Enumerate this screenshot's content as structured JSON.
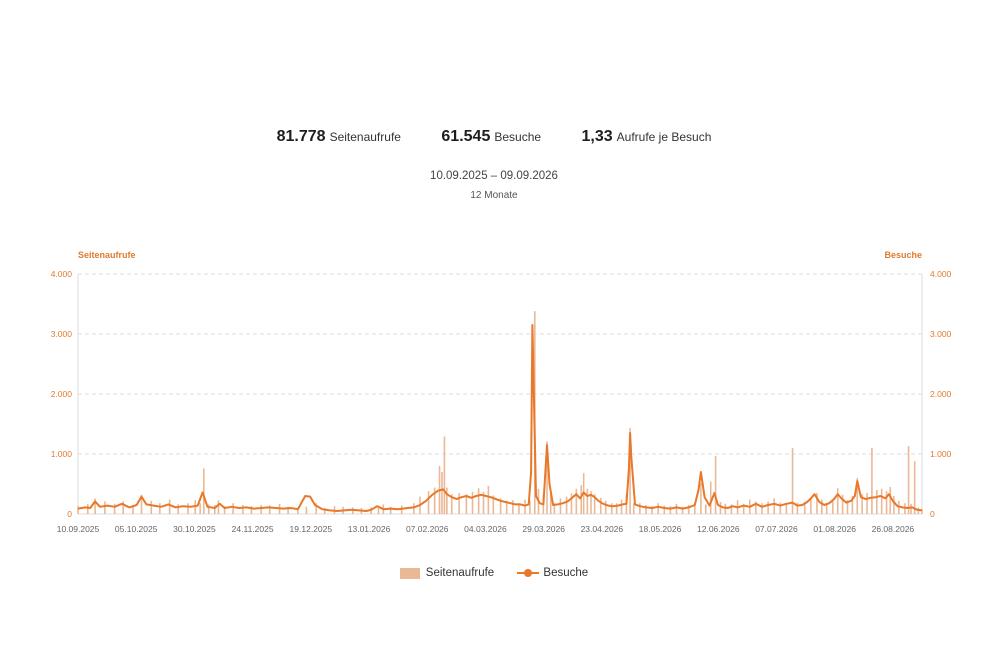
{
  "summary": {
    "pageviews_value": "81.778",
    "pageviews_label": "Seitenaufrufe",
    "visits_value": "61.545",
    "visits_label": "Besuche",
    "ratio_value": "1,33",
    "ratio_label": "Aufrufe je Besuch",
    "date_range": "10.09.2025 – 09.09.2026",
    "period_label": "12 Monate"
  },
  "colors": {
    "line": "#e8782a",
    "bars": "#ebb895",
    "axis_text": "#e07a2e",
    "grid": "#dcdcdc",
    "tick_text": "#666666"
  },
  "chart_data": {
    "type": "bar+line",
    "y_left_label": "Seitenaufrufe",
    "y_right_label": "Besuche",
    "ylim": [
      0,
      4000
    ],
    "y_ticks": [
      "0",
      "1.000",
      "2.000",
      "3.000",
      "4.000"
    ],
    "x_tick_labels": [
      "10.09.2025",
      "05.10.2025",
      "30.10.2025",
      "24.11.2025",
      "19.12.2025",
      "13.01.2026",
      "07.02.2026",
      "04.03.2026",
      "29.03.2026",
      "23.04.2026",
      "18.05.2026",
      "12.06.2026",
      "07.07.2026",
      "01.08.2026",
      "26.08.2026"
    ],
    "grid": true,
    "legend_position": "bottom-center",
    "series": [
      {
        "name": "Seitenaufrufe",
        "type": "bar",
        "points": [
          [
            0,
            130
          ],
          [
            8,
            170
          ],
          [
            14,
            260
          ],
          [
            22,
            210
          ],
          [
            30,
            170
          ],
          [
            37,
            210
          ],
          [
            45,
            150
          ],
          [
            52,
            320
          ],
          [
            60,
            220
          ],
          [
            67,
            180
          ],
          [
            75,
            240
          ],
          [
            82,
            160
          ],
          [
            90,
            180
          ],
          [
            96,
            230
          ],
          [
            100,
            180
          ],
          [
            103,
            760
          ],
          [
            107,
            160
          ],
          [
            112,
            150
          ],
          [
            115,
            230
          ],
          [
            120,
            130
          ],
          [
            127,
            180
          ],
          [
            135,
            150
          ],
          [
            142,
            130
          ],
          [
            150,
            150
          ],
          [
            157,
            140
          ],
          [
            165,
            170
          ],
          [
            172,
            120
          ],
          [
            180,
            110
          ],
          [
            187,
            120
          ],
          [
            195,
            180
          ],
          [
            202,
            100
          ],
          [
            210,
            130
          ],
          [
            217,
            120
          ],
          [
            225,
            110
          ],
          [
            232,
            100
          ],
          [
            240,
            110
          ],
          [
            246,
            100
          ],
          [
            250,
            160
          ],
          [
            256,
            120
          ],
          [
            265,
            140
          ],
          [
            275,
            180
          ],
          [
            280,
            290
          ],
          [
            287,
            380
          ],
          [
            292,
            440
          ],
          [
            296,
            800
          ],
          [
            298,
            700
          ],
          [
            300,
            1290
          ],
          [
            302,
            440
          ],
          [
            306,
            330
          ],
          [
            312,
            350
          ],
          [
            318,
            330
          ],
          [
            323,
            370
          ],
          [
            328,
            430
          ],
          [
            332,
            370
          ],
          [
            336,
            470
          ],
          [
            340,
            310
          ],
          [
            346,
            260
          ],
          [
            351,
            220
          ],
          [
            356,
            230
          ],
          [
            361,
            180
          ],
          [
            366,
            240
          ],
          [
            370,
            220
          ],
          [
            374,
            3380
          ],
          [
            377,
            420
          ],
          [
            381,
            320
          ],
          [
            384,
            1210
          ],
          [
            387,
            350
          ],
          [
            390,
            180
          ],
          [
            395,
            260
          ],
          [
            400,
            290
          ],
          [
            404,
            340
          ],
          [
            408,
            420
          ],
          [
            412,
            480
          ],
          [
            414,
            680
          ],
          [
            417,
            420
          ],
          [
            420,
            380
          ],
          [
            423,
            330
          ],
          [
            428,
            270
          ],
          [
            432,
            220
          ],
          [
            437,
            180
          ],
          [
            441,
            180
          ],
          [
            445,
            240
          ],
          [
            449,
            320
          ],
          [
            452,
            1430
          ],
          [
            455,
            180
          ],
          [
            460,
            180
          ],
          [
            465,
            150
          ],
          [
            470,
            130
          ],
          [
            475,
            180
          ],
          [
            480,
            140
          ],
          [
            485,
            130
          ],
          [
            490,
            170
          ],
          [
            495,
            120
          ],
          [
            500,
            150
          ],
          [
            505,
            180
          ],
          [
            510,
            520
          ],
          [
            514,
            160
          ],
          [
            518,
            540
          ],
          [
            522,
            970
          ],
          [
            526,
            200
          ],
          [
            530,
            170
          ],
          [
            535,
            160
          ],
          [
            540,
            230
          ],
          [
            545,
            170
          ],
          [
            550,
            240
          ],
          [
            555,
            210
          ],
          [
            560,
            180
          ],
          [
            565,
            210
          ],
          [
            570,
            260
          ],
          [
            575,
            190
          ],
          [
            580,
            160
          ],
          [
            585,
            1100
          ],
          [
            589,
            190
          ],
          [
            595,
            200
          ],
          [
            600,
            280
          ],
          [
            605,
            350
          ],
          [
            609,
            240
          ],
          [
            613,
            180
          ],
          [
            618,
            230
          ],
          [
            622,
            430
          ],
          [
            626,
            320
          ],
          [
            630,
            230
          ],
          [
            634,
            300
          ],
          [
            638,
            600
          ],
          [
            642,
            330
          ],
          [
            646,
            350
          ],
          [
            650,
            1100
          ],
          [
            654,
            400
          ],
          [
            658,
            420
          ],
          [
            662,
            380
          ],
          [
            665,
            450
          ],
          [
            668,
            300
          ],
          [
            672,
            220
          ],
          [
            677,
            180
          ],
          [
            680,
            1130
          ],
          [
            682,
            170
          ],
          [
            685,
            880
          ],
          [
            688,
            110
          ],
          [
            691,
            80
          ]
        ]
      },
      {
        "name": "Besuche",
        "type": "line",
        "points": [
          [
            0,
            90
          ],
          [
            6,
            110
          ],
          [
            10,
            100
          ],
          [
            14,
            210
          ],
          [
            18,
            120
          ],
          [
            24,
            140
          ],
          [
            30,
            120
          ],
          [
            36,
            170
          ],
          [
            42,
            110
          ],
          [
            48,
            150
          ],
          [
            52,
            290
          ],
          [
            56,
            160
          ],
          [
            62,
            140
          ],
          [
            68,
            120
          ],
          [
            74,
            160
          ],
          [
            80,
            110
          ],
          [
            86,
            130
          ],
          [
            92,
            120
          ],
          [
            98,
            140
          ],
          [
            102,
            360
          ],
          [
            106,
            120
          ],
          [
            112,
            100
          ],
          [
            116,
            170
          ],
          [
            120,
            100
          ],
          [
            126,
            120
          ],
          [
            132,
            100
          ],
          [
            138,
            110
          ],
          [
            144,
            90
          ],
          [
            150,
            100
          ],
          [
            156,
            110
          ],
          [
            162,
            100
          ],
          [
            168,
            90
          ],
          [
            174,
            100
          ],
          [
            180,
            80
          ],
          [
            186,
            300
          ],
          [
            190,
            290
          ],
          [
            194,
            150
          ],
          [
            200,
            80
          ],
          [
            206,
            60
          ],
          [
            212,
            50
          ],
          [
            218,
            60
          ],
          [
            224,
            70
          ],
          [
            230,
            60
          ],
          [
            236,
            50
          ],
          [
            240,
            70
          ],
          [
            245,
            130
          ],
          [
            250,
            80
          ],
          [
            256,
            90
          ],
          [
            262,
            80
          ],
          [
            270,
            100
          ],
          [
            275,
            110
          ],
          [
            280,
            150
          ],
          [
            285,
            220
          ],
          [
            290,
            320
          ],
          [
            295,
            390
          ],
          [
            299,
            410
          ],
          [
            302,
            330
          ],
          [
            306,
            280
          ],
          [
            310,
            250
          ],
          [
            314,
            280
          ],
          [
            318,
            300
          ],
          [
            322,
            270
          ],
          [
            326,
            300
          ],
          [
            330,
            320
          ],
          [
            334,
            300
          ],
          [
            338,
            280
          ],
          [
            342,
            250
          ],
          [
            346,
            220
          ],
          [
            350,
            200
          ],
          [
            354,
            180
          ],
          [
            358,
            160
          ],
          [
            362,
            160
          ],
          [
            366,
            140
          ],
          [
            369,
            160
          ],
          [
            371,
            700
          ],
          [
            372,
            3150
          ],
          [
            373,
            2200
          ],
          [
            375,
            300
          ],
          [
            378,
            180
          ],
          [
            381,
            160
          ],
          [
            384,
            1150
          ],
          [
            386,
            500
          ],
          [
            389,
            150
          ],
          [
            393,
            160
          ],
          [
            397,
            180
          ],
          [
            401,
            210
          ],
          [
            405,
            280
          ],
          [
            408,
            330
          ],
          [
            411,
            260
          ],
          [
            414,
            360
          ],
          [
            417,
            300
          ],
          [
            420,
            320
          ],
          [
            423,
            280
          ],
          [
            426,
            220
          ],
          [
            430,
            170
          ],
          [
            434,
            140
          ],
          [
            438,
            130
          ],
          [
            442,
            140
          ],
          [
            446,
            160
          ],
          [
            449,
            170
          ],
          [
            451,
            750
          ],
          [
            452,
            1350
          ],
          [
            453,
            950
          ],
          [
            456,
            160
          ],
          [
            460,
            130
          ],
          [
            465,
            110
          ],
          [
            470,
            100
          ],
          [
            475,
            120
          ],
          [
            480,
            100
          ],
          [
            485,
            90
          ],
          [
            490,
            110
          ],
          [
            495,
            90
          ],
          [
            500,
            110
          ],
          [
            505,
            150
          ],
          [
            508,
            400
          ],
          [
            510,
            700
          ],
          [
            513,
            280
          ],
          [
            517,
            140
          ],
          [
            521,
            350
          ],
          [
            524,
            150
          ],
          [
            528,
            110
          ],
          [
            532,
            100
          ],
          [
            536,
            130
          ],
          [
            540,
            110
          ],
          [
            545,
            140
          ],
          [
            550,
            120
          ],
          [
            555,
            170
          ],
          [
            560,
            120
          ],
          [
            565,
            150
          ],
          [
            570,
            170
          ],
          [
            575,
            140
          ],
          [
            580,
            170
          ],
          [
            585,
            190
          ],
          [
            589,
            140
          ],
          [
            593,
            150
          ],
          [
            597,
            200
          ],
          [
            600,
            260
          ],
          [
            603,
            330
          ],
          [
            607,
            200
          ],
          [
            611,
            150
          ],
          [
            615,
            180
          ],
          [
            619,
            250
          ],
          [
            622,
            330
          ],
          [
            625,
            260
          ],
          [
            629,
            190
          ],
          [
            633,
            220
          ],
          [
            636,
            300
          ],
          [
            638,
            550
          ],
          [
            641,
            280
          ],
          [
            645,
            250
          ],
          [
            649,
            270
          ],
          [
            653,
            280
          ],
          [
            657,
            300
          ],
          [
            661,
            260
          ],
          [
            664,
            330
          ],
          [
            667,
            220
          ],
          [
            671,
            130
          ],
          [
            675,
            110
          ],
          [
            679,
            100
          ],
          [
            683,
            110
          ],
          [
            687,
            70
          ],
          [
            691,
            60
          ]
        ]
      }
    ]
  }
}
